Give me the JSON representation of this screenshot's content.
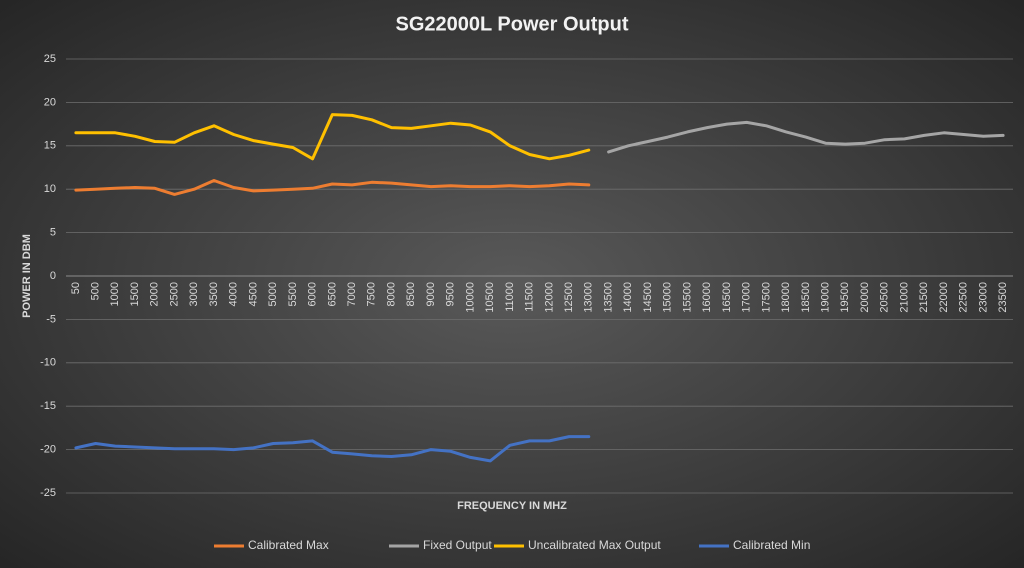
{
  "chart_data": {
    "type": "line",
    "title": "SG22000L Power Output",
    "x_label": "FREQUENCY IN MHZ",
    "y_label": "POWER IN DBM",
    "categories": [
      50,
      500,
      1000,
      1500,
      2000,
      2500,
      3000,
      3500,
      4000,
      4500,
      5000,
      5500,
      6000,
      6500,
      7000,
      7500,
      8000,
      8500,
      9000,
      9500,
      10000,
      10500,
      11000,
      11500,
      12000,
      12500,
      13000,
      13500,
      14000,
      14500,
      15000,
      15500,
      16000,
      16500,
      17000,
      17500,
      18000,
      18500,
      19000,
      19500,
      20000,
      20500,
      21000,
      21500,
      22000,
      22500,
      23000,
      23500
    ],
    "series": [
      {
        "name": "Calibrated Max",
        "color": "#ed7d31",
        "values": [
          9.9,
          10.0,
          10.1,
          10.2,
          10.1,
          9.4,
          10.0,
          11.0,
          10.2,
          9.8,
          9.9,
          10.0,
          10.1,
          10.6,
          10.5,
          10.8,
          10.7,
          10.5,
          10.3,
          10.4,
          10.3,
          10.3,
          10.4,
          10.3,
          10.4,
          10.6,
          10.5,
          null,
          null,
          null,
          null,
          null,
          null,
          null,
          null,
          null,
          null,
          null,
          null,
          null,
          null,
          null,
          null,
          null,
          null,
          null,
          null,
          null
        ]
      },
      {
        "name": "Fixed Output",
        "color": "#a5a5a5",
        "values": [
          null,
          null,
          null,
          null,
          null,
          null,
          null,
          null,
          null,
          null,
          null,
          null,
          null,
          null,
          null,
          null,
          null,
          null,
          null,
          null,
          null,
          null,
          null,
          null,
          null,
          null,
          null,
          14.3,
          15.0,
          15.5,
          16.0,
          16.6,
          17.1,
          17.5,
          17.7,
          17.3,
          16.6,
          16.0,
          15.3,
          15.2,
          15.3,
          15.7,
          15.8,
          16.2,
          16.5,
          16.3,
          16.1,
          16.2
        ]
      },
      {
        "name": "Uncalibrated Max Output",
        "color": "#ffc000",
        "values": [
          16.5,
          16.5,
          16.5,
          16.1,
          15.5,
          15.4,
          16.5,
          17.3,
          16.3,
          15.6,
          15.2,
          14.8,
          13.5,
          18.6,
          18.5,
          18.0,
          17.1,
          17.0,
          17.3,
          17.6,
          17.4,
          16.6,
          15.0,
          14.0,
          13.5,
          13.9,
          14.5,
          null,
          null,
          null,
          null,
          null,
          null,
          null,
          null,
          null,
          null,
          null,
          null,
          null,
          null,
          null,
          null,
          null,
          null,
          null,
          null,
          null
        ]
      },
      {
        "name": "Calibrated Min",
        "color": "#4472c4",
        "values": [
          -19.8,
          -19.3,
          -19.6,
          -19.7,
          -19.8,
          -19.9,
          -19.9,
          -19.9,
          -20.0,
          -19.8,
          -19.3,
          -19.2,
          -19.0,
          -20.3,
          -20.5,
          -20.7,
          -20.8,
          -20.6,
          -20.0,
          -20.2,
          -20.9,
          -21.3,
          -19.5,
          -19.0,
          -19.0,
          -18.5,
          -18.5,
          null,
          null,
          null,
          null,
          null,
          null,
          null,
          null,
          null,
          null,
          null,
          null,
          null,
          null,
          null,
          null,
          null,
          null,
          null,
          null,
          null
        ]
      }
    ],
    "ylim": [
      -25,
      25
    ],
    "yticks": [
      -25,
      -20,
      -15,
      -10,
      -5,
      0,
      5,
      10,
      15,
      20,
      25
    ],
    "grid": true,
    "legend": "bottom"
  }
}
